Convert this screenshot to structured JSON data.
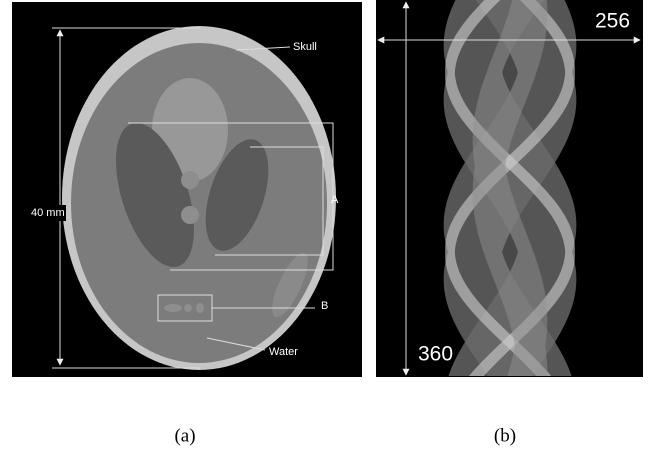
{
  "panel_a": {
    "labels": {
      "skull": "Skull",
      "size": "40 mm",
      "a": "A",
      "b": "B",
      "water": "Water"
    },
    "caption": "(a)"
  },
  "panel_b": {
    "labels": {
      "width": "256",
      "height": "360"
    },
    "caption": "(b)"
  }
}
